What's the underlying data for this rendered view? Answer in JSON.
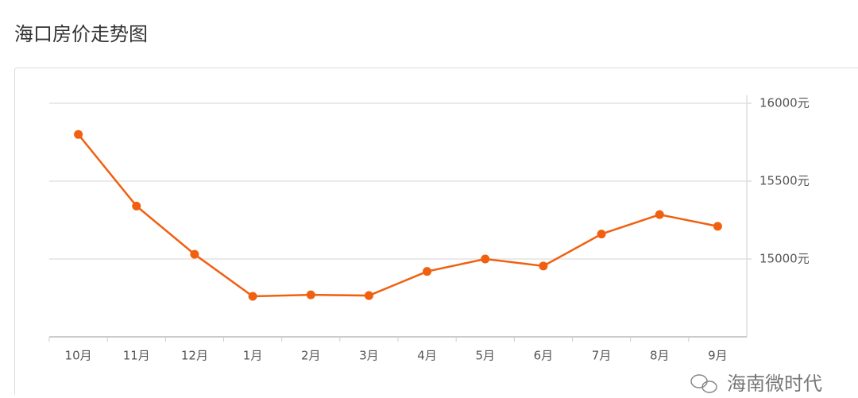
{
  "chart_data": {
    "type": "line",
    "title": "海口房价走势图",
    "categories": [
      "10月",
      "11月",
      "12月",
      "1月",
      "2月",
      "3月",
      "4月",
      "5月",
      "6月",
      "7月",
      "8月",
      "9月"
    ],
    "series": [
      {
        "name": null,
        "color": "#f0600f",
        "values": [
          15800,
          15340,
          15030,
          14760,
          14770,
          14765,
          14920,
          15000,
          14955,
          15160,
          15285,
          15210
        ]
      }
    ],
    "ylim": [
      14500,
      16000
    ],
    "yticks": [
      {
        "value": 15000,
        "label": "15000元"
      },
      {
        "value": 15500,
        "label": "15500元"
      },
      {
        "value": 16000,
        "label": "16000元"
      }
    ],
    "y_axis_side": "right",
    "grid": true,
    "watermark": "海南微时代"
  }
}
